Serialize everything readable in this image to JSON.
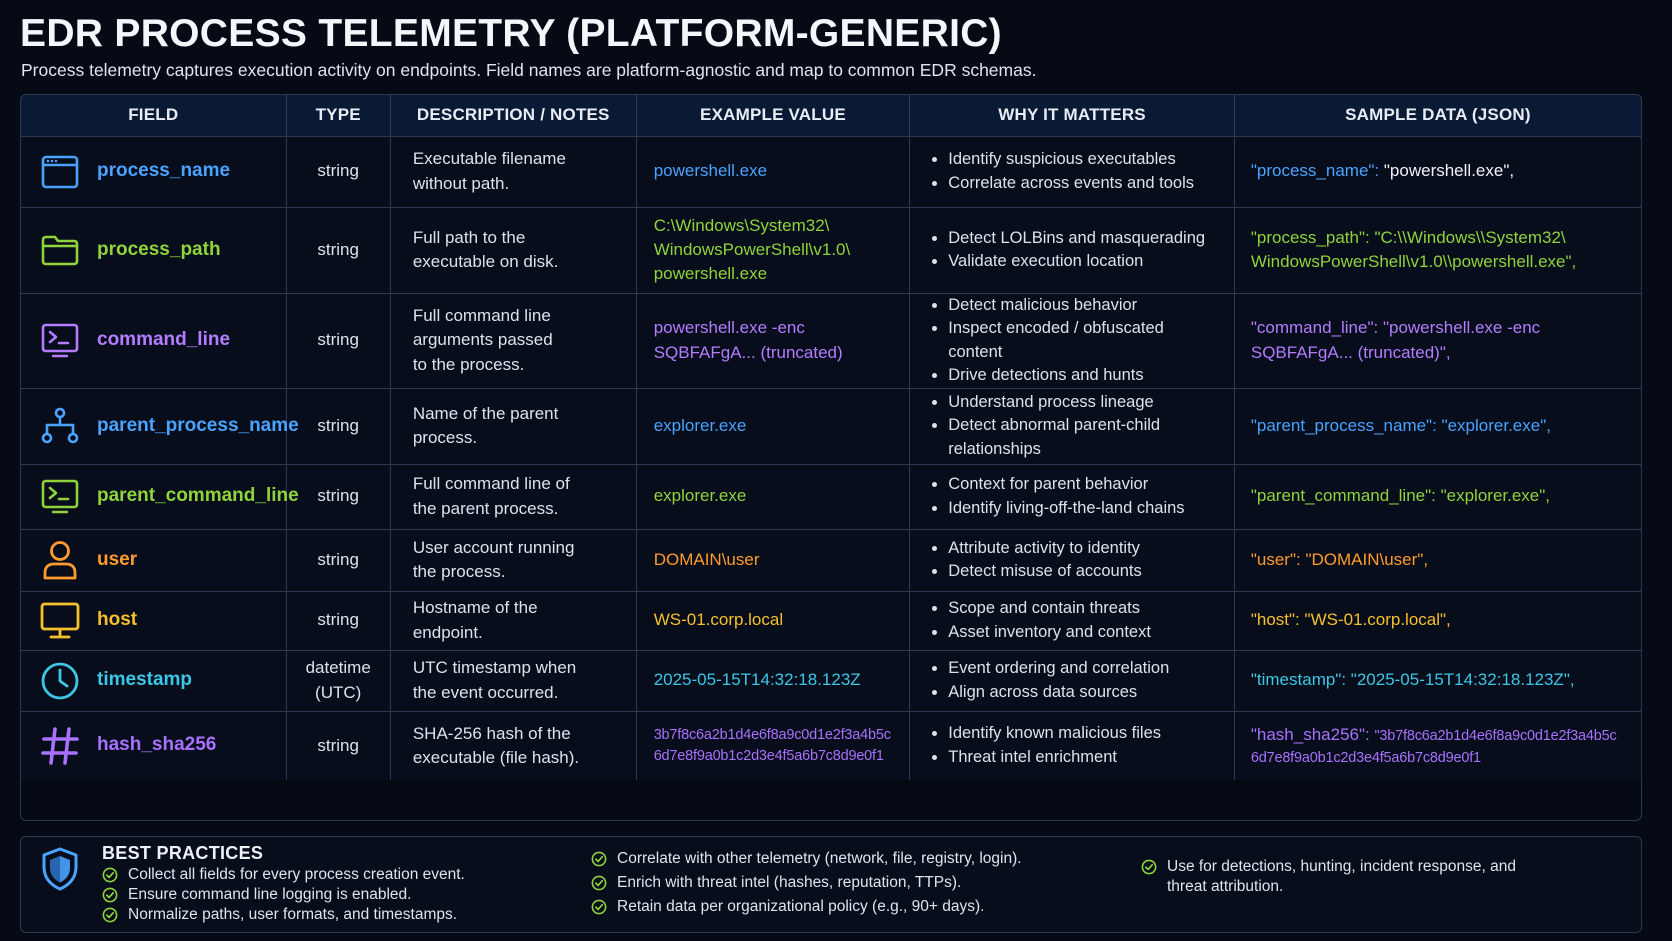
{
  "title": "EDR PROCESS TELEMETRY (PLATFORM-GENERIC)",
  "subtitle": "Process telemetry captures execution activity on endpoints. Field names are platform-agnostic and map to common EDR schemas.",
  "table": {
    "headers": [
      "FIELD",
      "TYPE",
      "DESCRIPTION / NOTES",
      "EXAMPLE VALUE",
      "WHY IT MATTERS",
      "SAMPLE DATA (JSON)"
    ],
    "rows": [
      {
        "field": "process_name",
        "icon": "window-icon",
        "color": "#4aa3ff",
        "type": [
          "string"
        ],
        "description": [
          "Executable filename",
          "without path."
        ],
        "example": [
          "powershell.exe"
        ],
        "why": [
          "Identify suspicious executables",
          "Correlate across events and tools"
        ],
        "json_key": "\"process_name\":",
        "json_value": [
          "\"powershell.exe\","
        ]
      },
      {
        "field": "process_path",
        "icon": "folder-icon",
        "color": "#8fd43a",
        "type": [
          "string"
        ],
        "description": [
          "Full path to the",
          "executable on disk."
        ],
        "example": [
          "C:\\Windows\\System32\\",
          "WindowsPowerShell\\v1.0\\",
          "powershell.exe"
        ],
        "why": [
          "Detect LOLBins and masquerading",
          "Validate execution location"
        ],
        "json_key": "\"process_path\":",
        "json_value": [
          "\"C:\\\\Windows\\\\System32\\",
          "WindowsPowerShell\\v1.0\\\\powershell.exe\","
        ]
      },
      {
        "field": "command_line",
        "icon": "terminal-icon",
        "color": "#b47cff",
        "type": [
          "string"
        ],
        "description": [
          "Full command line",
          "arguments passed",
          "to the process."
        ],
        "example": [
          "powershell.exe -enc",
          "SQBFAFgA... (truncated)"
        ],
        "why": [
          "Detect malicious behavior",
          "Inspect encoded / obfuscated content",
          "Drive detections and hunts"
        ],
        "json_key": "\"command_line\":",
        "json_value": [
          "\"powershell.exe -enc",
          "SQBFAFgA... (truncated)\","
        ]
      },
      {
        "field": "parent_process_name",
        "icon": "hierarchy-icon",
        "color": "#4aa3ff",
        "type": [
          "string"
        ],
        "description": [
          "Name of the parent",
          "process."
        ],
        "example": [
          "explorer.exe"
        ],
        "why": [
          "Understand process lineage",
          "Detect abnormal parent-child relationships"
        ],
        "json_key": "\"parent_process_name\":",
        "json_value": [
          "\"explorer.exe\","
        ]
      },
      {
        "field": "parent_command_line",
        "icon": "terminal-icon",
        "color": "#8fd43a",
        "type": [
          "string"
        ],
        "description": [
          "Full command line of",
          "the parent process."
        ],
        "example": [
          "explorer.exe"
        ],
        "why": [
          "Context for parent behavior",
          "Identify living-off-the-land chains"
        ],
        "json_key": "\"parent_command_line\":",
        "json_value": [
          "\"explorer.exe\","
        ]
      },
      {
        "field": "user",
        "icon": "user-icon",
        "color": "#ff9a2e",
        "type": [
          "string"
        ],
        "description": [
          "User account running",
          "the process."
        ],
        "example": [
          "DOMAIN\\user"
        ],
        "why": [
          "Attribute activity to identity",
          "Detect misuse of accounts"
        ],
        "json_key": "\"user\":",
        "json_value": [
          "\"DOMAIN\\user\","
        ]
      },
      {
        "field": "host",
        "icon": "monitor-icon",
        "color": "#f5c02b",
        "type": [
          "string"
        ],
        "description": [
          "Hostname of the",
          "endpoint."
        ],
        "example": [
          "WS-01.corp.local"
        ],
        "why": [
          "Scope and contain threats",
          "Asset inventory and context"
        ],
        "json_key": "\"host\":",
        "json_value": [
          "\"WS-01.corp.local\","
        ]
      },
      {
        "field": "timestamp",
        "icon": "clock-icon",
        "color": "#3cc7e6",
        "type": [
          "datetime",
          "(UTC)"
        ],
        "description": [
          "UTC timestamp when",
          "the event occurred."
        ],
        "example": [
          "2025-05-15T14:32:18.123Z"
        ],
        "why": [
          "Event ordering and correlation",
          "Align across data sources"
        ],
        "json_key": "\"timestamp\":",
        "json_value": [
          "\"2025-05-15T14:32:18.123Z\","
        ]
      },
      {
        "field": "hash_sha256",
        "icon": "hash-icon",
        "color": "#a971ff",
        "type": [
          "string"
        ],
        "description": [
          "SHA-256 hash of the",
          "executable (file hash)."
        ],
        "example": [
          "3b7f8c6a2b1d4e6f8a9c0d1e2f3a4b5c",
          "6d7e8f9a0b1c2d3e4f5a6b7c8d9e0f1"
        ],
        "why": [
          "Identify known malicious files",
          "Threat intel enrichment"
        ],
        "json_key": "\"hash_sha256\":",
        "json_value": [
          "\"3b7f8c6a2b1d4e6f8a9c0d1e2f3a4b5c",
          "6d7e8f9a0b1c2d3e4f5a6b7c8d9e0f1"
        ]
      }
    ]
  },
  "best_practices": {
    "title": "BEST PRACTICES",
    "icon": "shield-icon",
    "col1": [
      "Collect all fields for every process creation event.",
      "Ensure command line logging is enabled.",
      "Normalize paths, user formats, and timestamps."
    ],
    "col2": [
      "Correlate with other telemetry (network, file, registry, login).",
      "Enrich with threat intel (hashes, reputation, TTPs).",
      "Retain data per organizational policy (e.g., 90+ days)."
    ],
    "col3": [
      "Use for detections, hunting, incident response, and threat attribution."
    ]
  }
}
